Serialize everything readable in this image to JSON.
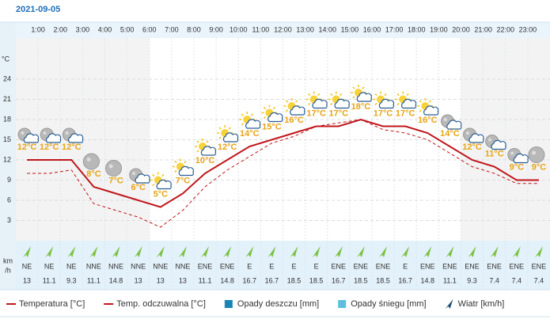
{
  "chart_data": {
    "type": "line",
    "title": "2021-09-05",
    "hour_labels": [
      "1:00",
      "2:00",
      "3:00",
      "4:00",
      "5:00",
      "6:00",
      "7:00",
      "8:00",
      "9:00",
      "10:00",
      "11:00",
      "12:00",
      "13:00",
      "14:00",
      "15:00",
      "16:00",
      "17:00",
      "18:00",
      "19:00",
      "20:00",
      "21:00",
      "22:00",
      "23:00"
    ],
    "y_unit": "°C",
    "ylim": [
      0,
      30
    ],
    "yticks": [
      3,
      6,
      9,
      12,
      15,
      18,
      21,
      24
    ],
    "grid": true,
    "series": [
      {
        "name": "Temperatura [°C]",
        "color": "#c0161b",
        "dashed": false,
        "values": [
          12,
          12,
          12,
          8,
          7,
          6,
          5,
          7,
          10,
          12,
          14,
          15,
          16,
          17,
          17,
          18,
          17,
          17,
          16,
          14,
          12,
          11,
          9,
          9
        ],
        "value_labels": [
          "12°C",
          "12°C",
          "12°C",
          "8°C",
          "7°C",
          "6°C",
          "5°C",
          "7°C",
          "10°C",
          "12°C",
          "14°C",
          "15°C",
          "16°C",
          "17°C",
          "17°C",
          "18°C",
          "17°C",
          "17°C",
          "16°C",
          "14°C",
          "12°C",
          "11°C",
          "9°C",
          "9°C"
        ]
      },
      {
        "name": "Temp. odczuwalna [°C]",
        "color": "#c0161b",
        "dashed": true,
        "values": [
          10,
          10,
          10.5,
          5.5,
          4.5,
          3.5,
          2,
          4.5,
          8,
          10.5,
          12.5,
          14.5,
          15.5,
          17,
          17.5,
          18,
          16.5,
          16,
          15,
          13,
          11,
          10,
          8.5,
          8.5
        ]
      }
    ],
    "legend_extra": [
      {
        "name": "Opady deszczu [mm]",
        "color": "#1a85b5"
      },
      {
        "name": "Opady śniegu [mm]",
        "color": "#5bc0de"
      },
      {
        "name": "Wiatr [km/h]",
        "color": "#1d4f7a"
      }
    ],
    "wind": {
      "unit_lines": [
        "km",
        "/h"
      ],
      "directions": [
        "NE",
        "NE",
        "NE",
        "NNE",
        "NNE",
        "NNE",
        "NNE",
        "NNE",
        "ENE",
        "ENE",
        "E",
        "E",
        "E",
        "E",
        "ENE",
        "ENE",
        "ENE",
        "E",
        "ENE",
        "ENE",
        "ENE",
        "ENE",
        "ENE",
        "ENE"
      ],
      "speeds": [
        13,
        11.1,
        9.3,
        11.1,
        14.8,
        13,
        13,
        13,
        11.1,
        14.8,
        16.7,
        16.7,
        18.5,
        18.5,
        16.7,
        18.5,
        18.5,
        16.7,
        14.8,
        11.1,
        9.3,
        7.4,
        7.4,
        7.4
      ]
    }
  }
}
